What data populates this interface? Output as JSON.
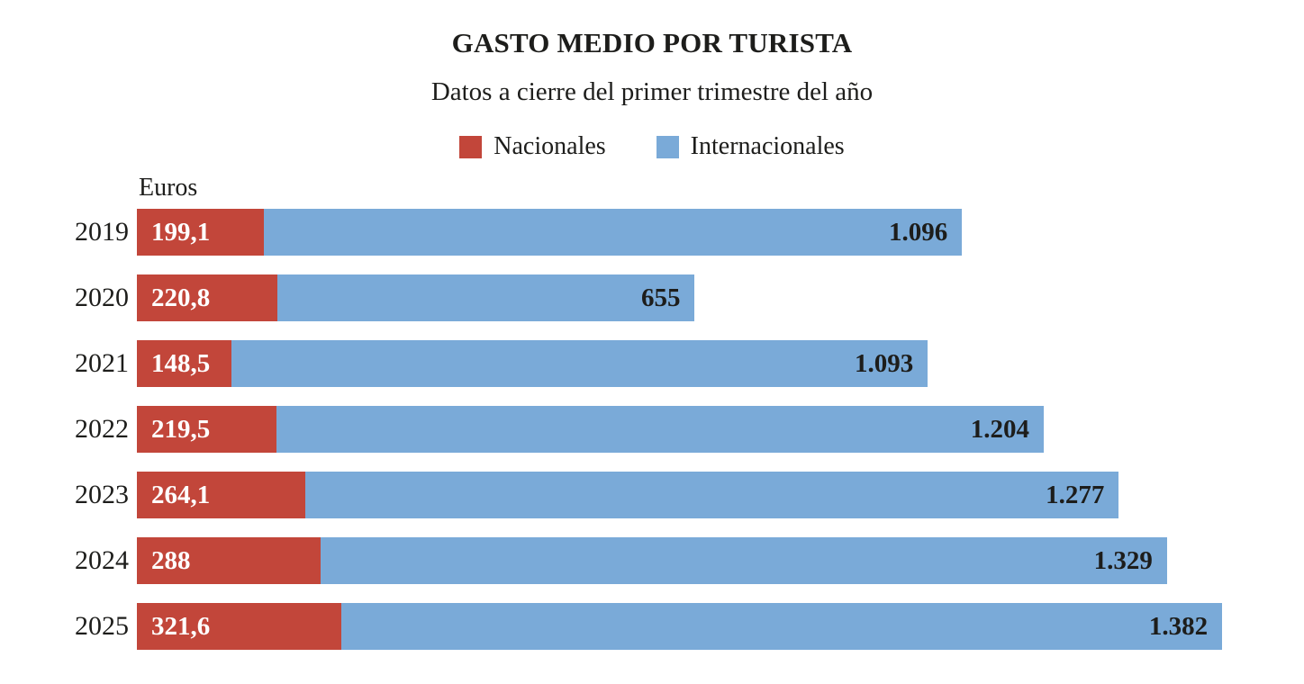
{
  "header": {
    "title": "GASTO MEDIO POR TURISTA",
    "subtitle": "Datos a cierre del primer trimestre del año"
  },
  "legend": [
    {
      "label": "Nacionales",
      "color": "#c2463a"
    },
    {
      "label": "Internacionales",
      "color": "#7aaad8"
    }
  ],
  "axis": {
    "unit_label": "Euros"
  },
  "colors": {
    "nacionales": "#c2463a",
    "internacionales": "#7aaad8",
    "text": "#1d1d1b",
    "background": "#ffffff",
    "bar_label_nacionales": "#ffffff",
    "bar_label_internacionales": "#1d1d1b"
  },
  "chart_data": {
    "type": "bar",
    "orientation": "horizontal",
    "stacked": true,
    "title": "GASTO MEDIO POR TURISTA",
    "subtitle": "Datos a cierre del primer trimestre del año",
    "xlabel": "Euros",
    "ylabel": "",
    "xlim": [
      0,
      1832
    ],
    "grid": false,
    "legend_position": "top",
    "categories": [
      "2019",
      "2020",
      "2021",
      "2022",
      "2023",
      "2024",
      "2025"
    ],
    "series": [
      {
        "name": "Nacionales",
        "color": "#c2463a",
        "values": [
          199.1,
          220.8,
          148.5,
          219.5,
          264.1,
          288,
          321.6
        ],
        "labels": [
          "199,1",
          "220,8",
          "148,5",
          "219,5",
          "264,1",
          "288",
          "321,6"
        ]
      },
      {
        "name": "Internacionales",
        "color": "#7aaad8",
        "values": [
          1096,
          655,
          1093,
          1204,
          1277,
          1329,
          1382
        ],
        "labels": [
          "1.096",
          "655",
          "1.093",
          "1.204",
          "1.277",
          "1.329",
          "1.382"
        ]
      }
    ]
  }
}
